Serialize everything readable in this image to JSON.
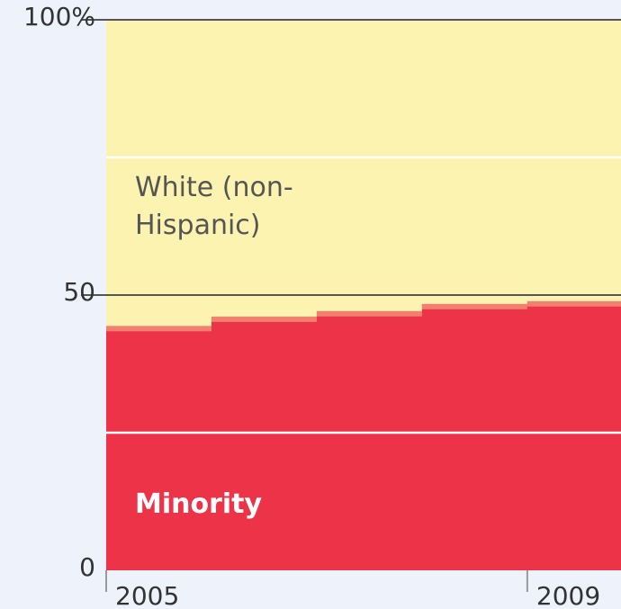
{
  "chart_data": {
    "type": "stacked-step-area",
    "x": [
      2005,
      2006,
      2007,
      2008,
      2009
    ],
    "series": [
      {
        "name": "Minority",
        "color": "#ec3347",
        "edge_color": "#f2806f",
        "values": [
          44.4,
          46.1,
          47.1,
          48.4,
          48.9
        ]
      },
      {
        "name": "White (non-Hispanic)",
        "color": "#fdf3b0",
        "values": [
          55.6,
          53.9,
          52.9,
          51.6,
          51.1
        ]
      }
    ],
    "xlim": [
      2005,
      2009.89
    ],
    "xticks": [
      2005,
      2009
    ],
    "ylim": [
      0,
      100
    ],
    "yticks": [
      0,
      50,
      {
        "value": 100,
        "label": "100%"
      }
    ],
    "minor_yticks": [
      25,
      75
    ]
  }
}
